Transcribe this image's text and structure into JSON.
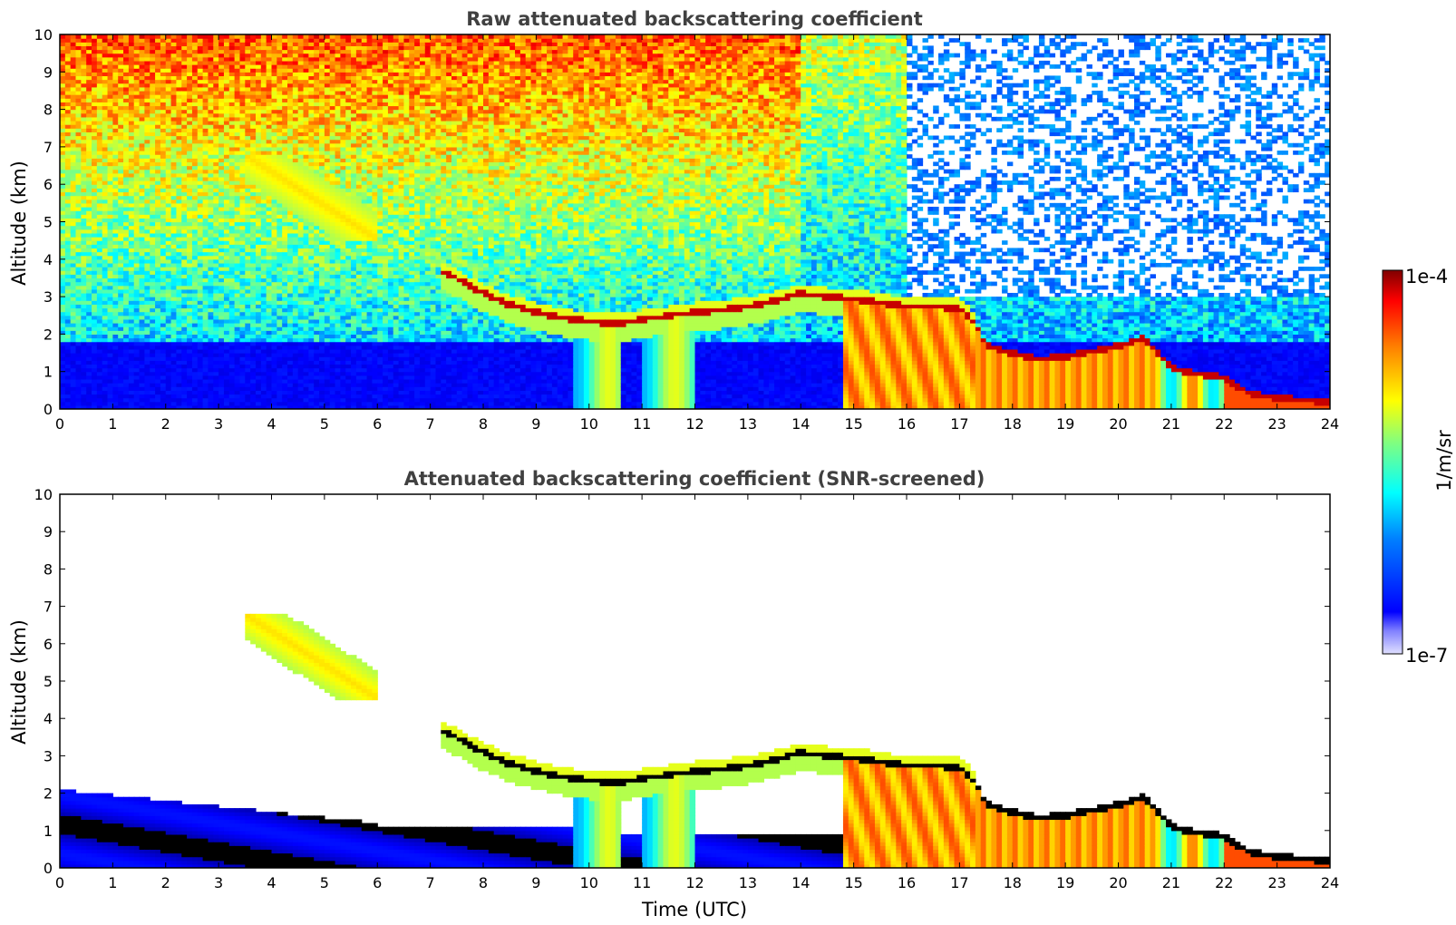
{
  "chart_data": [
    {
      "type": "heatmap",
      "title": "Raw attenuated backscattering coefficient",
      "xlabel": "",
      "ylabel": "Altitude (km)",
      "xlim": [
        0,
        24
      ],
      "ylim": [
        0,
        10
      ],
      "x_ticks": [
        "0",
        "1",
        "2",
        "3",
        "4",
        "5",
        "6",
        "7",
        "8",
        "9",
        "10",
        "11",
        "12",
        "13",
        "14",
        "15",
        "16",
        "17",
        "18",
        "19",
        "20",
        "21",
        "22",
        "23",
        "24"
      ],
      "y_ticks": [
        "0",
        "1",
        "2",
        "3",
        "4",
        "5",
        "6",
        "7",
        "8",
        "9",
        "10"
      ],
      "cloud_base_km": {
        "x": [
          7.2,
          7.5,
          8.0,
          8.5,
          9.0,
          9.5,
          10.0,
          10.5,
          11.0,
          11.5,
          12.0,
          12.5,
          13.0,
          13.5,
          14.0,
          14.5,
          15.0,
          15.5,
          16.0,
          16.5,
          17.0,
          17.3,
          17.5,
          18.0,
          18.5,
          19.0,
          19.5,
          20.0,
          20.5,
          21.0,
          21.5,
          22.0,
          22.5,
          23.0,
          23.5,
          24.0
        ],
        "y": [
          3.7,
          3.5,
          3.1,
          2.8,
          2.6,
          2.45,
          2.35,
          2.3,
          2.4,
          2.5,
          2.6,
          2.65,
          2.75,
          2.9,
          3.1,
          3.0,
          2.95,
          2.85,
          2.75,
          2.75,
          2.7,
          2.3,
          1.7,
          1.5,
          1.35,
          1.4,
          1.55,
          1.7,
          1.9,
          1.1,
          0.95,
          0.85,
          0.4,
          0.3,
          0.25,
          0.2
        ]
      },
      "grid": false
    },
    {
      "type": "heatmap",
      "title": "Attenuated backscattering coefficient (SNR-screened)",
      "xlabel": "Time (UTC)",
      "ylabel": "Altitude (km)",
      "xlim": [
        0,
        24
      ],
      "ylim": [
        0,
        10
      ],
      "x_ticks": [
        "0",
        "1",
        "2",
        "3",
        "4",
        "5",
        "6",
        "7",
        "8",
        "9",
        "10",
        "11",
        "12",
        "13",
        "14",
        "15",
        "16",
        "17",
        "18",
        "19",
        "20",
        "21",
        "22",
        "23",
        "24"
      ],
      "y_ticks": [
        "0",
        "1",
        "2",
        "3",
        "4",
        "5",
        "6",
        "7",
        "8",
        "9",
        "10"
      ],
      "grid": false
    }
  ],
  "colorbar": {
    "label": "1/m/sr",
    "max_label": "1e-4",
    "min_label": "1e-7",
    "scale": "log",
    "range": [
      1e-07,
      0.0001
    ],
    "colormap": "jet"
  },
  "colors": {
    "background": "#ffffff",
    "title": "#404040",
    "low": "#0000e6",
    "high": "#7f0000"
  }
}
